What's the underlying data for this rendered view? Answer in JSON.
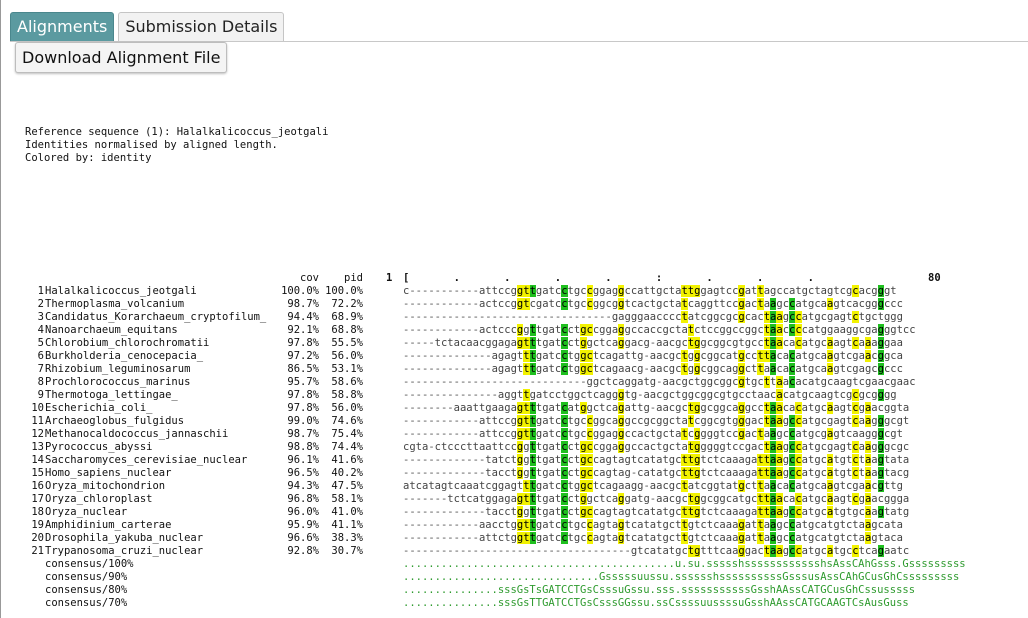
{
  "tabs": {
    "alignments": "Alignments",
    "submission_details": "Submission Details"
  },
  "download_label": "Download Alignment File",
  "info_lines": [
    "Reference sequence (1): Halalkalicoccus_jeotgali",
    "Identities normalised by aligned length.",
    "Colored by: identity"
  ],
  "alignment": {
    "header": {
      "cov": "cov",
      "pid": "pid",
      "ruler_start": "1",
      "ruler": "[       .       .       .       .       :       .       .       .",
      "ruler_end": "80"
    },
    "colors": {
      "identity_high": "#3aa0e0",
      "identity_mid": "#1fbf1f",
      "identity_low": "#f2f200",
      "consensus_text": "#2f9b2f"
    },
    "rows": [
      {
        "idx": "1",
        "name": "Halalkalicoccus_jeotgali",
        "cov": "100.0%",
        "pid": "100.0%",
        "seq": "c-----------attccggttgatcctgccggaggccattgctattggagtccgattagccatgctagtcgcacgggt"
      },
      {
        "idx": "2",
        "name": "Thermoplasma_volcanium",
        "cov": "98.7%",
        "pid": "72.2%",
        "seq": "------------actccggtcgatcctgccggcggtcactgctatcaggttccgactaagccatgcaagtcacgggccc"
      },
      {
        "idx": "3",
        "name": "Candidatus_Korarchaeum_cryptofilum_",
        "cov": "94.4%",
        "pid": "68.9%",
        "seq": "---------------------------------gagggaacccctatcggcgcgcactaagccatgcgagtctgctggg"
      },
      {
        "idx": "4",
        "name": "Nanoarchaeum_equitans",
        "cov": "92.1%",
        "pid": "68.8%",
        "seq": "------------actcccggttgatcctgccggaggccaccgctatctccggccggctaaccccatggaaggcgagggtcc"
      },
      {
        "idx": "5",
        "name": "Chlorobium_chlorochromatii",
        "cov": "97.8%",
        "pid": "55.5%",
        "seq": "-----tctacaacggagagtttgatcctggctcaggacg-aacgctggcggcgtgcctaacacatgcaagtcaaaggaa"
      },
      {
        "idx": "6",
        "name": "Burkholderia_cenocepacia_",
        "cov": "97.2%",
        "pid": "56.0%",
        "seq": "--------------agagtttgatcctggctcagattg-aacgctggcggcatgccttacacatgcaagtcgaacggca"
      },
      {
        "idx": "7",
        "name": "Rhizobium_leguminosarum",
        "cov": "86.5%",
        "pid": "53.1%",
        "seq": "--------------agagtttgatcctggctcagaacg-aacgctggcggcaggcttaacacatgcaagtcgagcgccc"
      },
      {
        "idx": "8",
        "name": "Prochlorococcus_marinus",
        "cov": "95.7%",
        "pid": "58.6%",
        "seq": "-----------------------------ggctcaggatg-aacgctggcggcgtgcttaacacatgcaagtcgaacgaac"
      },
      {
        "idx": "9",
        "name": "Thermotoga_lettingae_",
        "cov": "97.8%",
        "pid": "58.8%",
        "seq": "---------------aggttgatcctggctcagggtg-aacgctggcggcgtgcctaacacatgcaagtcgcgcgggg"
      },
      {
        "idx": "10",
        "name": "Escherichia_coli_",
        "cov": "97.8%",
        "pid": "56.0%",
        "seq": "--------aaattgaagagtttgatcatggctcagattg-aacgctggcggcaggcctaacacatgcaagtcgaacggta"
      },
      {
        "idx": "11",
        "name": "Archaeoglobus_fulgidus",
        "cov": "99.0%",
        "pid": "74.6%",
        "seq": "------------attccggttgatcctgccggcaggccgcggctatcggcgtgggactaagccatgcgagtcaagggcgt"
      },
      {
        "idx": "12",
        "name": "Methanocaldococcus_jannaschii",
        "cov": "98.7%",
        "pid": "75.4%",
        "seq": "------------attccggttgatcctgccggaggccactgctatcggggtccgactaagccatgcgagtcaagggcgt"
      },
      {
        "idx": "13",
        "name": "Pyrococcus_abyssi",
        "cov": "98.8%",
        "pid": "74.4%",
        "seq": "cgta-ctcccttaattccggttgatcctgccggaggccactgctatgggggtccgactaagccatgcgagtcaagggcgc"
      },
      {
        "idx": "14",
        "name": "Saccharomyces_cerevisiae_nuclear",
        "cov": "96.1%",
        "pid": "41.6%",
        "seq": "-------------tatctggttgatcctgccagtagtcatatgcttgtctcaaagattaagccatgcatgtctaagtata"
      },
      {
        "idx": "15",
        "name": "Homo_sapiens_nuclear",
        "cov": "96.5%",
        "pid": "40.2%",
        "seq": "-------------tacctggttgatcctgccagtag-catatgcttgtctcaaagattaagccatgcatgtctaagtacg"
      },
      {
        "idx": "16",
        "name": "Oryza_mitochondrion",
        "cov": "94.3%",
        "pid": "47.5%",
        "seq": "atcatagtcaaatcggagtttgatcctggctcagaagg-aacgctatcggtatgcttaacacatgcaagtcgaacgttg"
      },
      {
        "idx": "17",
        "name": "Oryza_chloroplast",
        "cov": "96.8%",
        "pid": "58.1%",
        "seq": "-------tctcatggagagtttgatcctggctcaggatg-aacgctggcggcatgcttaacacatgcaagtcgaacggga"
      },
      {
        "idx": "18",
        "name": "Oryza_nuclear",
        "cov": "96.0%",
        "pid": "41.0%",
        "seq": "-------------tacctggttgatcctgccagtagtcatatgcttgtctcaaagattaagccatgcatgtgcaagtatg"
      },
      {
        "idx": "19",
        "name": "Amphidinium_carterae",
        "cov": "95.9%",
        "pid": "41.1%",
        "seq": "------------aacctggttgatcctgccagtagtcatatgcttgtctcaaagattaagccatgcatgtctaagcata"
      },
      {
        "idx": "20",
        "name": "Drosophila_yakuba_nuclear",
        "cov": "96.6%",
        "pid": "38.3%",
        "seq": "------------attctggttgatcctgccagtagtcatatgcttgtctcaaagattaagccatgcatgtctaagtaca"
      },
      {
        "idx": "21",
        "name": "Trypanosoma_cruzi_nuclear",
        "cov": "92.8%",
        "pid": "30.7%",
        "seq": "------------------------------------gtcatatgctgtttcaaggactaagccatgcatgcctcagaatc"
      },
      {
        "idx": "",
        "name": "consensus/100%",
        "cov": "",
        "pid": "",
        "seq": "...........................................u.su.ssssshsssssssssssshsAssCAhGsss.Gsssssssss",
        "consensus": true
      },
      {
        "idx": "",
        "name": "consensus/90%",
        "cov": "",
        "pid": "",
        "seq": "...............................Gsssssuussu.sssssshssssssssssGsssusAssCAhGCusGhCsssssssss",
        "consensus": true
      },
      {
        "idx": "",
        "name": "consensus/80%",
        "cov": "",
        "pid": "",
        "seq": "...............sssGsTsGATCCTGsCsssuGssu.sss.sssssssssssGsshAAssCATGCusGhCssusssss",
        "consensus": true
      },
      {
        "idx": "",
        "name": "consensus/70%",
        "cov": "",
        "pid": "",
        "seq": "...............sssGsTTGATCCTGsCsssGGssu.ssCssssuussssuGsshAAssCATGCAAGTCsAusGuss",
        "consensus": true
      }
    ]
  }
}
